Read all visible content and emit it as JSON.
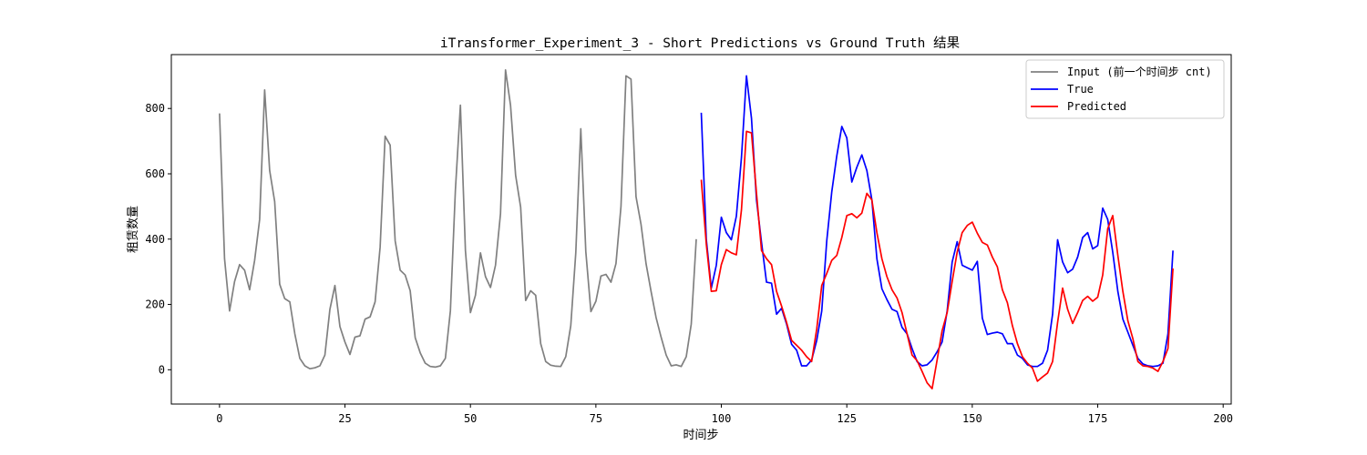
{
  "chart_data": {
    "type": "line",
    "title": "iTransformer_Experiment_3 - Short Predictions vs Ground Truth 结果",
    "xlabel": "时间步",
    "ylabel": "租赁数量",
    "xlim": [
      -9.6,
      201.6
    ],
    "ylim": [
      -105,
      965
    ],
    "xticks": [
      0,
      25,
      50,
      75,
      100,
      125,
      150,
      175,
      200
    ],
    "yticks": [
      0,
      200,
      400,
      600,
      800
    ],
    "grid": false,
    "legend_position": "top-right",
    "series": [
      {
        "name": "Input (前一个时间步 cnt)",
        "color": "#808080",
        "x_start": 0,
        "values": [
          785,
          340,
          180,
          270,
          322,
          305,
          245,
          335,
          460,
          857,
          610,
          515,
          262,
          218,
          208,
          110,
          35,
          12,
          3,
          6,
          12,
          45,
          185,
          258,
          132,
          85,
          47,
          100,
          104,
          155,
          162,
          208,
          375,
          715,
          688,
          395,
          305,
          290,
          242,
          98,
          52,
          20,
          10,
          8,
          12,
          35,
          180,
          550,
          810,
          365,
          175,
          228,
          358,
          285,
          252,
          320,
          478,
          918,
          810,
          595,
          498,
          212,
          242,
          228,
          80,
          25,
          14,
          11,
          10,
          40,
          135,
          358,
          738,
          362,
          178,
          210,
          287,
          292,
          268,
          325,
          500,
          900,
          890,
          530,
          445,
          325,
          240,
          160,
          100,
          45,
          12,
          15,
          10,
          40,
          140,
          400
        ]
      },
      {
        "name": "True",
        "color": "#0000ff",
        "x_start": 96,
        "values": [
          787,
          400,
          250,
          320,
          467,
          420,
          398,
          470,
          650,
          900,
          770,
          520,
          390,
          268,
          265,
          170,
          188,
          140,
          78,
          60,
          12,
          12,
          30,
          90,
          180,
          395,
          545,
          655,
          745,
          710,
          575,
          620,
          658,
          610,
          520,
          340,
          248,
          215,
          185,
          178,
          130,
          110,
          65,
          25,
          12,
          15,
          30,
          55,
          85,
          180,
          330,
          392,
          320,
          312,
          305,
          332,
          158,
          108,
          112,
          115,
          110,
          80,
          80,
          45,
          35,
          15,
          10,
          10,
          20,
          60,
          170,
          398,
          330,
          297,
          308,
          345,
          405,
          420,
          370,
          380,
          495,
          460,
          360,
          240,
          155,
          115,
          75,
          35,
          18,
          12,
          10,
          12,
          20,
          110,
          365
        ]
      },
      {
        "name": "Predicted",
        "color": "#ff0000",
        "x_start": 96,
        "values": [
          582,
          385,
          240,
          242,
          322,
          368,
          358,
          352,
          490,
          730,
          725,
          540,
          365,
          340,
          322,
          240,
          195,
          145,
          90,
          75,
          60,
          40,
          25,
          125,
          258,
          295,
          335,
          350,
          405,
          472,
          478,
          465,
          480,
          540,
          520,
          420,
          340,
          285,
          245,
          220,
          175,
          110,
          45,
          28,
          -5,
          -40,
          -58,
          30,
          120,
          175,
          270,
          360,
          420,
          442,
          452,
          418,
          390,
          382,
          345,
          315,
          245,
          205,
          135,
          80,
          40,
          20,
          5,
          -35,
          -22,
          -10,
          25,
          145,
          250,
          185,
          142,
          175,
          212,
          225,
          210,
          222,
          290,
          432,
          472,
          350,
          240,
          150,
          95,
          25,
          12,
          10,
          5,
          -5,
          25,
          65,
          310
        ]
      }
    ]
  }
}
